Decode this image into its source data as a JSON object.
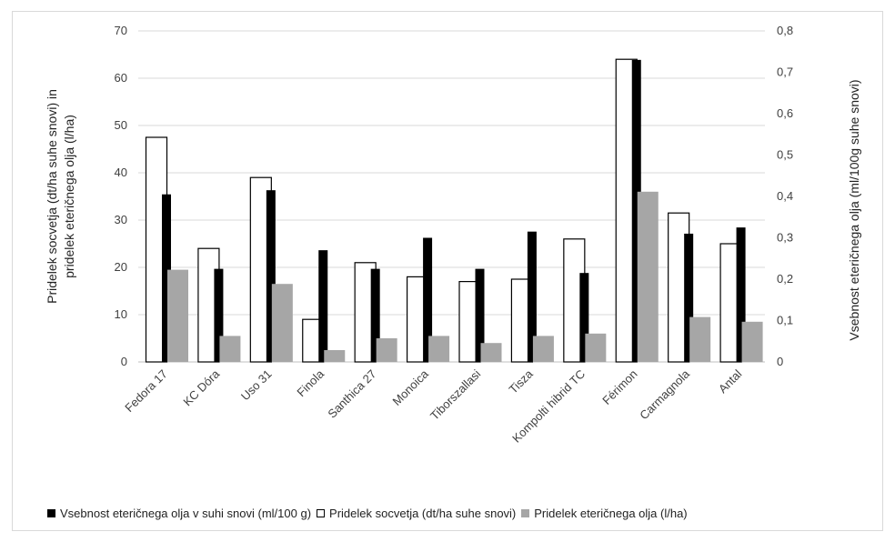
{
  "chart_data": {
    "type": "bar",
    "categories": [
      "Fedora 17",
      "KC Dóra",
      "Uso 31",
      "Finola",
      "Santhica 27",
      "Monoica",
      "Tiborszallasi",
      "Tisza",
      "Kompolti hibrid TC",
      "Férimon",
      "Carmagnola",
      "Antal"
    ],
    "series": [
      {
        "name": "Pridelek socvetja (dt/ha suhe snovi)",
        "axis": "left",
        "color": "#ffffff",
        "stroke": "#000000",
        "values": [
          47.5,
          24,
          39,
          9,
          21,
          18,
          17,
          17.5,
          26,
          64,
          31.5,
          25
        ]
      },
      {
        "name": "Vsebnost eteričnega olja v suhi snovi (ml/100 g)",
        "axis": "right",
        "color": "#000000",
        "values": [
          0.405,
          0.225,
          0.415,
          0.27,
          0.225,
          0.3,
          0.225,
          0.315,
          0.215,
          0.73,
          0.31,
          0.325
        ]
      },
      {
        "name": "Pridelek eteričnega olja (l/ha)",
        "axis": "left",
        "color": "#a6a6a6",
        "values": [
          19.5,
          5.5,
          16.5,
          2.5,
          5,
          5.5,
          4,
          5.5,
          6,
          36,
          9.5,
          8.5
        ]
      }
    ],
    "left_axis": {
      "label": "Pridelek socvetja (dt/ha suhe snovi) in pridelek eteričnega olja (l/ha)",
      "label_lines": [
        "Pridelek socvetja (dt/ha suhe snovi) in",
        "pridelek eteričnega olja (l/ha)"
      ],
      "ylim": [
        0,
        70
      ],
      "ticks": [
        0,
        10,
        20,
        30,
        40,
        50,
        60,
        70
      ],
      "tick_labels": [
        "0",
        "10",
        "20",
        "30",
        "40",
        "50",
        "60",
        "70"
      ]
    },
    "right_axis": {
      "label": "Vsebnost eteričnega olja (ml/100g suhe snovi)",
      "ylim": [
        0,
        0.8
      ],
      "ticks": [
        0,
        0.1,
        0.2,
        0.3,
        0.4,
        0.5,
        0.6,
        0.7,
        0.8
      ],
      "tick_labels": [
        "0",
        "0,1",
        "0,2",
        "0,3",
        "0,4",
        "0,5",
        "0,6",
        "0,7",
        "0,8"
      ]
    },
    "grid": true,
    "legend_position": "bottom",
    "legend_order": [
      1,
      0,
      2
    ]
  }
}
